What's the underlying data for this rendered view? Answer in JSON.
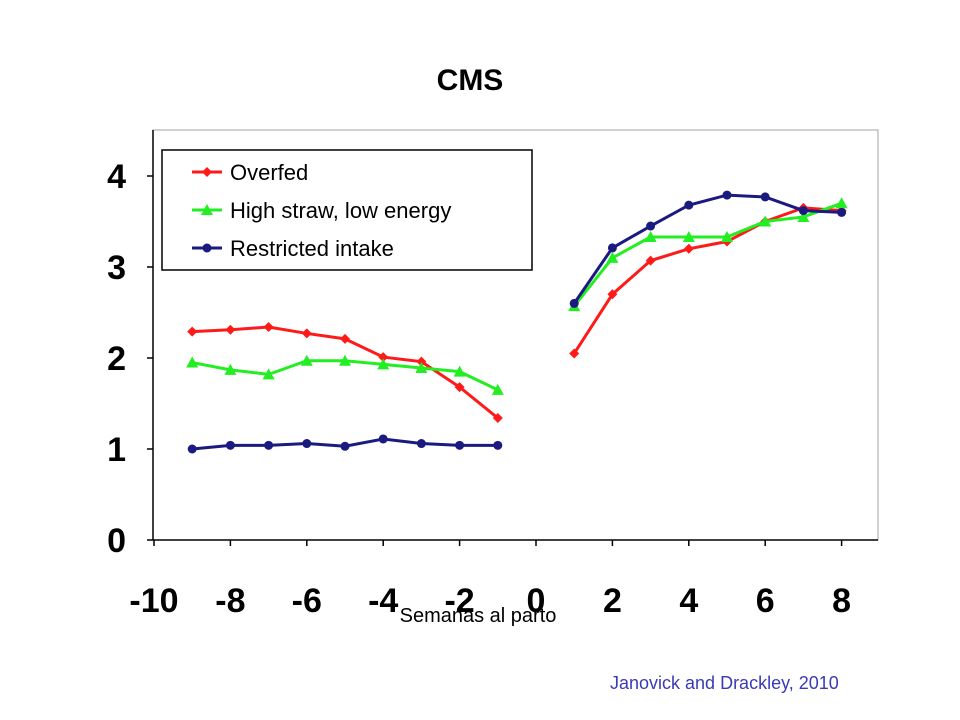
{
  "chart_data": {
    "type": "line",
    "title": "CMS",
    "xlabel": "Semanas al parto",
    "ylabel": "",
    "xlim": [
      -10,
      9
    ],
    "ylim": [
      0,
      4.5
    ],
    "x_ticks": [
      -10,
      -8,
      -6,
      -4,
      -2,
      0,
      2,
      4,
      6,
      8
    ],
    "y_ticks": [
      0,
      1,
      2,
      3,
      4
    ],
    "grid": false,
    "legend_position": "top-left",
    "series": [
      {
        "name": "Overfed",
        "color": "#ff1a1a",
        "marker": "diamond",
        "segments": [
          {
            "x": [
              -9,
              -8,
              -7,
              -6,
              -5,
              -4,
              -3,
              -2,
              -1
            ],
            "y": [
              2.29,
              2.31,
              2.34,
              2.27,
              2.21,
              2.01,
              1.96,
              1.68,
              1.34
            ]
          },
          {
            "x": [
              1,
              2,
              3,
              4,
              5,
              6,
              7,
              8
            ],
            "y": [
              2.05,
              2.7,
              3.07,
              3.2,
              3.28,
              3.5,
              3.65,
              3.62
            ]
          }
        ]
      },
      {
        "name": "High straw, low energy",
        "color": "#22ee22",
        "marker": "triangle",
        "segments": [
          {
            "x": [
              -9,
              -8,
              -7,
              -6,
              -5,
              -4,
              -3,
              -2,
              -1
            ],
            "y": [
              1.95,
              1.87,
              1.82,
              1.97,
              1.97,
              1.93,
              1.89,
              1.85,
              1.65
            ]
          },
          {
            "x": [
              1,
              2,
              3,
              4,
              5,
              6,
              7,
              8
            ],
            "y": [
              2.57,
              3.1,
              3.33,
              3.33,
              3.33,
              3.5,
              3.55,
              3.7
            ]
          }
        ]
      },
      {
        "name": "Restricted intake",
        "color": "#1a1a80",
        "marker": "circle",
        "segments": [
          {
            "x": [
              -9,
              -8,
              -7,
              -6,
              -5,
              -4,
              -3,
              -2,
              -1
            ],
            "y": [
              1.0,
              1.04,
              1.04,
              1.06,
              1.03,
              1.11,
              1.06,
              1.04,
              1.04
            ]
          },
          {
            "x": [
              1,
              2,
              3,
              4,
              5,
              6,
              7,
              8
            ],
            "y": [
              2.6,
              3.21,
              3.45,
              3.68,
              3.79,
              3.77,
              3.62,
              3.6
            ]
          }
        ]
      }
    ]
  },
  "source_text": "Janovick and Drackley, 2010"
}
